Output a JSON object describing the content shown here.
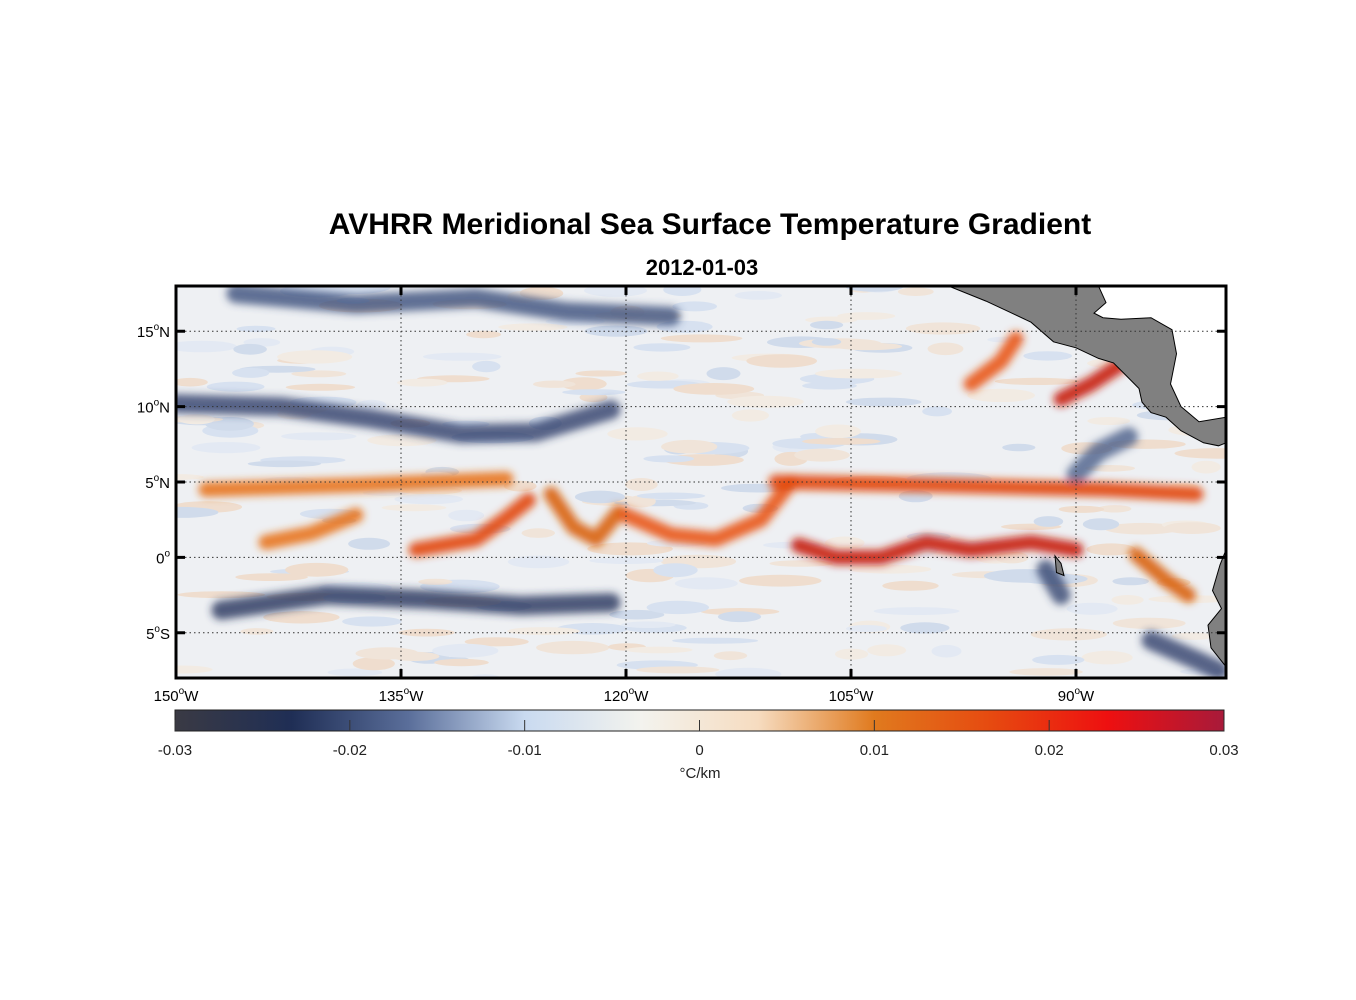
{
  "title": "AVHRR Meridional Sea Surface Temperature Gradient",
  "subtitle": "2012-01-03",
  "map": {
    "lon_range": [
      -150,
      -80
    ],
    "lat_range": [
      -8,
      18
    ],
    "grid_lines": "dotted",
    "land_color": "#808080",
    "lon_ticks": [
      {
        "value": -150,
        "deg": "150",
        "hemi": "W"
      },
      {
        "value": -135,
        "deg": "135",
        "hemi": "W"
      },
      {
        "value": -120,
        "deg": "120",
        "hemi": "W"
      },
      {
        "value": -105,
        "deg": "105",
        "hemi": "W"
      },
      {
        "value": -90,
        "deg": "90",
        "hemi": "W"
      }
    ],
    "lat_ticks": [
      {
        "value": 15,
        "deg": "15",
        "hemi": "N"
      },
      {
        "value": 10,
        "deg": "10",
        "hemi": "N"
      },
      {
        "value": 5,
        "deg": "5",
        "hemi": "N"
      },
      {
        "value": 0,
        "deg": "0",
        "hemi": ""
      },
      {
        "value": -5,
        "deg": "5",
        "hemi": "S"
      }
    ]
  },
  "colorbar": {
    "label": "°C/km",
    "range": [
      -0.03,
      0.03
    ],
    "ticks": [
      {
        "value": -0.03,
        "label": "-0.03"
      },
      {
        "value": -0.02,
        "label": "-0.02"
      },
      {
        "value": -0.01,
        "label": "-0.01"
      },
      {
        "value": 0,
        "label": "0"
      },
      {
        "value": 0.01,
        "label": "0.01"
      },
      {
        "value": 0.02,
        "label": "0.02"
      },
      {
        "value": 0.03,
        "label": "0.03"
      }
    ],
    "colors": [
      "#3a3a44",
      "#1f2e55",
      "#5a6e9a",
      "#c9daf0",
      "#f3f3ee",
      "#f6dcc0",
      "#e07a1e",
      "#e64a10",
      "#ee1010",
      "#a81a3a"
    ]
  },
  "features": {
    "positive_bands": [
      {
        "name": "equatorial-front-west",
        "points": [
          [
            -144,
            1
          ],
          [
            -141,
            1.6
          ],
          [
            -138,
            2.8
          ]
        ]
      },
      {
        "name": "equatorial-front-130",
        "points": [
          [
            -134,
            0.5
          ],
          [
            -130,
            1.2
          ],
          [
            -128,
            2.6
          ],
          [
            -126.5,
            3.8
          ]
        ]
      },
      {
        "name": "equatorial-front-122",
        "points": [
          [
            -125,
            4.2
          ],
          [
            -123.5,
            2.0
          ],
          [
            -122,
            1.2
          ],
          [
            -120.5,
            3.0
          ]
        ]
      },
      {
        "name": "equatorial-front-113",
        "points": [
          [
            -120,
            2.8
          ],
          [
            -117,
            1.5
          ],
          [
            -114,
            1.2
          ],
          [
            -111,
            2.5
          ],
          [
            -109,
            5
          ]
        ]
      },
      {
        "name": "equatorial-front-103",
        "points": [
          [
            -108.5,
            0.8
          ],
          [
            -106,
            0
          ],
          [
            -103,
            0
          ],
          [
            -100,
            1.0
          ],
          [
            -97,
            0.5
          ],
          [
            -93,
            1.0
          ],
          [
            -90,
            0.5
          ]
        ]
      },
      {
        "name": "north-front-5n",
        "points": [
          [
            -148,
            4.5
          ],
          [
            -138,
            4.8
          ],
          [
            -128,
            5.2
          ]
        ]
      },
      {
        "name": "north-front-5n-east",
        "points": [
          [
            -110,
            5.0
          ],
          [
            -100,
            4.8
          ],
          [
            -88,
            4.5
          ],
          [
            -82,
            4.2
          ]
        ]
      },
      {
        "name": "peru-front",
        "points": [
          [
            -86,
            0.2
          ],
          [
            -84,
            -1.5
          ],
          [
            -82.5,
            -2.5
          ]
        ]
      },
      {
        "name": "costa-rica-front",
        "points": [
          [
            -97,
            11.5
          ],
          [
            -95,
            13
          ],
          [
            -94,
            14.5
          ]
        ]
      },
      {
        "name": "gulf-front",
        "points": [
          [
            -91,
            10.5
          ],
          [
            -89,
            11.5
          ],
          [
            -87,
            12.8
          ]
        ]
      }
    ],
    "negative_bands": [
      {
        "name": "itcz-cold-10n",
        "points": [
          [
            -150,
            10.2
          ],
          [
            -143,
            10
          ],
          [
            -137,
            9.2
          ],
          [
            -131,
            8.2
          ],
          [
            -126,
            8.3
          ],
          [
            -121,
            9.8
          ]
        ]
      },
      {
        "name": "cold-band-17n",
        "points": [
          [
            -146,
            17.5
          ],
          [
            -138,
            16.8
          ],
          [
            -130,
            17.2
          ],
          [
            -124,
            16.3
          ],
          [
            -117,
            16.0
          ]
        ]
      },
      {
        "name": "south-cold-3s",
        "points": [
          [
            -147,
            -3.5
          ],
          [
            -140,
            -2.5
          ],
          [
            -133,
            -2.8
          ],
          [
            -127,
            -3.2
          ],
          [
            -121,
            -3.0
          ]
        ]
      },
      {
        "name": "gulf-cold-gap",
        "points": [
          [
            -90,
            5.5
          ],
          [
            -88.5,
            7.0
          ],
          [
            -86.5,
            8.0
          ]
        ]
      },
      {
        "name": "galapagos-cold",
        "points": [
          [
            -92,
            -0.8
          ],
          [
            -91,
            -2.5
          ]
        ]
      },
      {
        "name": "peru-cold-south",
        "points": [
          [
            -85,
            -5.5
          ],
          [
            -82,
            -6.8
          ],
          [
            -80.5,
            -7.5
          ]
        ]
      }
    ]
  }
}
